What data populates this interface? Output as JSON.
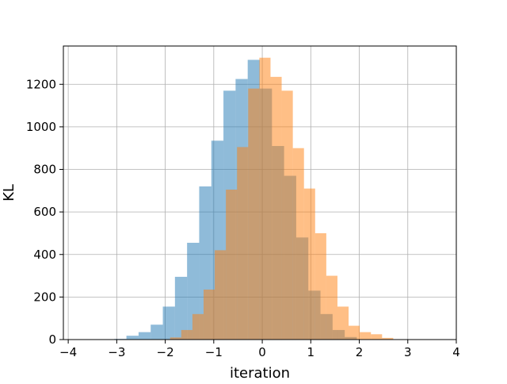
{
  "chart_data": {
    "type": "bar",
    "title": "",
    "xlabel": "iteration",
    "ylabel": "KL",
    "xlim": [
      -4.1,
      4.0
    ],
    "ylim": [
      0,
      1380
    ],
    "grid": true,
    "x_ticks": [
      -4,
      -3,
      -2,
      -1,
      0,
      1,
      2,
      3,
      4
    ],
    "x_tick_labels": [
      "−4",
      "−3",
      "−2",
      "−1",
      "0",
      "1",
      "2",
      "3",
      "4"
    ],
    "y_ticks": [
      0,
      200,
      400,
      600,
      800,
      1000,
      1200
    ],
    "y_tick_labels": [
      "0",
      "200",
      "400",
      "600",
      "800",
      "1000",
      "1200"
    ],
    "series": [
      {
        "color": "#1f77b4",
        "opacity": 0.5,
        "bins": [
          [
            -3.05,
            -2.8,
            3
          ],
          [
            -2.8,
            -2.55,
            18
          ],
          [
            -2.55,
            -2.3,
            35
          ],
          [
            -2.3,
            -2.05,
            70
          ],
          [
            -2.05,
            -1.8,
            155
          ],
          [
            -1.8,
            -1.55,
            295
          ],
          [
            -1.55,
            -1.3,
            455
          ],
          [
            -1.3,
            -1.05,
            720
          ],
          [
            -1.05,
            -0.8,
            935
          ],
          [
            -0.8,
            -0.55,
            1170
          ],
          [
            -0.55,
            -0.3,
            1225
          ],
          [
            -0.3,
            -0.05,
            1315
          ],
          [
            -0.05,
            0.2,
            1180
          ],
          [
            0.2,
            0.45,
            910
          ],
          [
            0.45,
            0.7,
            770
          ],
          [
            0.7,
            0.95,
            480
          ],
          [
            0.95,
            1.2,
            230
          ],
          [
            1.2,
            1.45,
            120
          ],
          [
            1.45,
            1.7,
            45
          ],
          [
            1.7,
            1.95,
            12
          ]
        ]
      },
      {
        "color": "#ff7f0e",
        "opacity": 0.5,
        "bins": [
          [
            -1.9,
            -1.67,
            10
          ],
          [
            -1.67,
            -1.44,
            45
          ],
          [
            -1.44,
            -1.21,
            120
          ],
          [
            -1.21,
            -0.98,
            235
          ],
          [
            -0.98,
            -0.75,
            420
          ],
          [
            -0.75,
            -0.52,
            705
          ],
          [
            -0.52,
            -0.29,
            905
          ],
          [
            -0.29,
            -0.06,
            1180
          ],
          [
            -0.06,
            0.17,
            1325
          ],
          [
            0.17,
            0.4,
            1235
          ],
          [
            0.4,
            0.63,
            1170
          ],
          [
            0.63,
            0.86,
            900
          ],
          [
            0.86,
            1.09,
            710
          ],
          [
            1.09,
            1.32,
            500
          ],
          [
            1.32,
            1.55,
            300
          ],
          [
            1.55,
            1.78,
            155
          ],
          [
            1.78,
            2.01,
            65
          ],
          [
            2.01,
            2.24,
            35
          ],
          [
            2.24,
            2.47,
            25
          ],
          [
            2.47,
            2.7,
            8
          ]
        ]
      }
    ]
  }
}
